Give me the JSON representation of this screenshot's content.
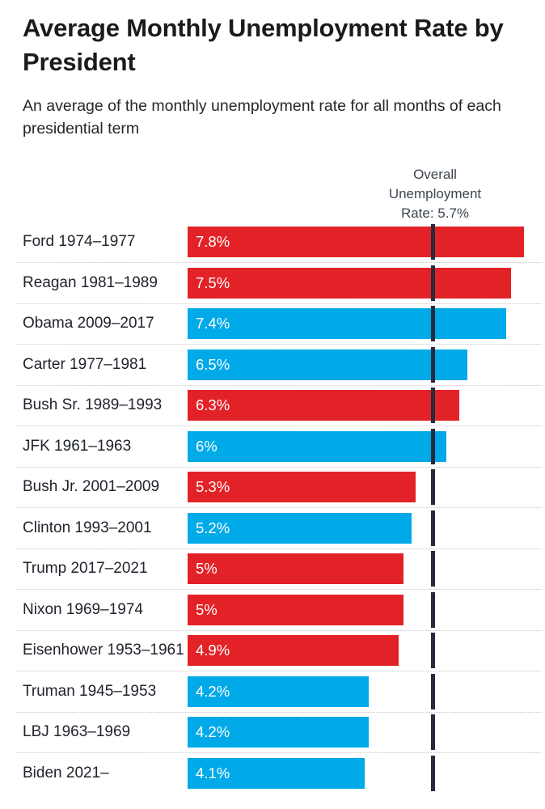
{
  "header": {
    "title": "Average Monthly Unemployment Rate by President",
    "subtitle": "An average of the monthly unemployment rate for all months of each presidential term"
  },
  "chart_data": {
    "type": "bar",
    "orientation": "horizontal",
    "title": "Average Monthly Unemployment Rate by President",
    "subtitle": "An average of the monthly unemployment rate for all months of each presidential term",
    "unit": "%",
    "xlim": [
      0,
      8.3
    ],
    "grid": false,
    "legend": "none",
    "reference_line": {
      "label": "Overall Unemployment Rate: 5.7%",
      "value": 5.7
    },
    "colors": {
      "republican": "#e32227",
      "democrat": "#00a9e8",
      "reference_line": "#262b3e"
    },
    "rows": [
      {
        "label": "Ford 1974–1977",
        "value": 7.8,
        "display_value": "7.8%",
        "party": "R"
      },
      {
        "label": "Reagan 1981–1989",
        "value": 7.5,
        "display_value": "7.5%",
        "party": "R"
      },
      {
        "label": "Obama 2009–2017",
        "value": 7.4,
        "display_value": "7.4%",
        "party": "D"
      },
      {
        "label": "Carter 1977–1981",
        "value": 6.5,
        "display_value": "6.5%",
        "party": "D"
      },
      {
        "label": "Bush Sr. 1989–1993",
        "value": 6.3,
        "display_value": "6.3%",
        "party": "R"
      },
      {
        "label": "JFK 1961–1963",
        "value": 6.0,
        "display_value": "6%",
        "party": "D"
      },
      {
        "label": "Bush Jr. 2001–2009",
        "value": 5.3,
        "display_value": "5.3%",
        "party": "R"
      },
      {
        "label": "Clinton 1993–2001",
        "value": 5.2,
        "display_value": "5.2%",
        "party": "D"
      },
      {
        "label": "Trump 2017–2021",
        "value": 5.0,
        "display_value": "5%",
        "party": "R"
      },
      {
        "label": "Nixon 1969–1974",
        "value": 5.0,
        "display_value": "5%",
        "party": "R"
      },
      {
        "label": "Eisenhower 1953–1961",
        "value": 4.9,
        "display_value": "4.9%",
        "party": "R"
      },
      {
        "label": "Truman 1945–1953",
        "value": 4.2,
        "display_value": "4.2%",
        "party": "D"
      },
      {
        "label": "LBJ 1963–1969",
        "value": 4.2,
        "display_value": "4.2%",
        "party": "D"
      },
      {
        "label": "Biden 2021–",
        "value": 4.1,
        "display_value": "4.1%",
        "party": "D"
      }
    ]
  }
}
